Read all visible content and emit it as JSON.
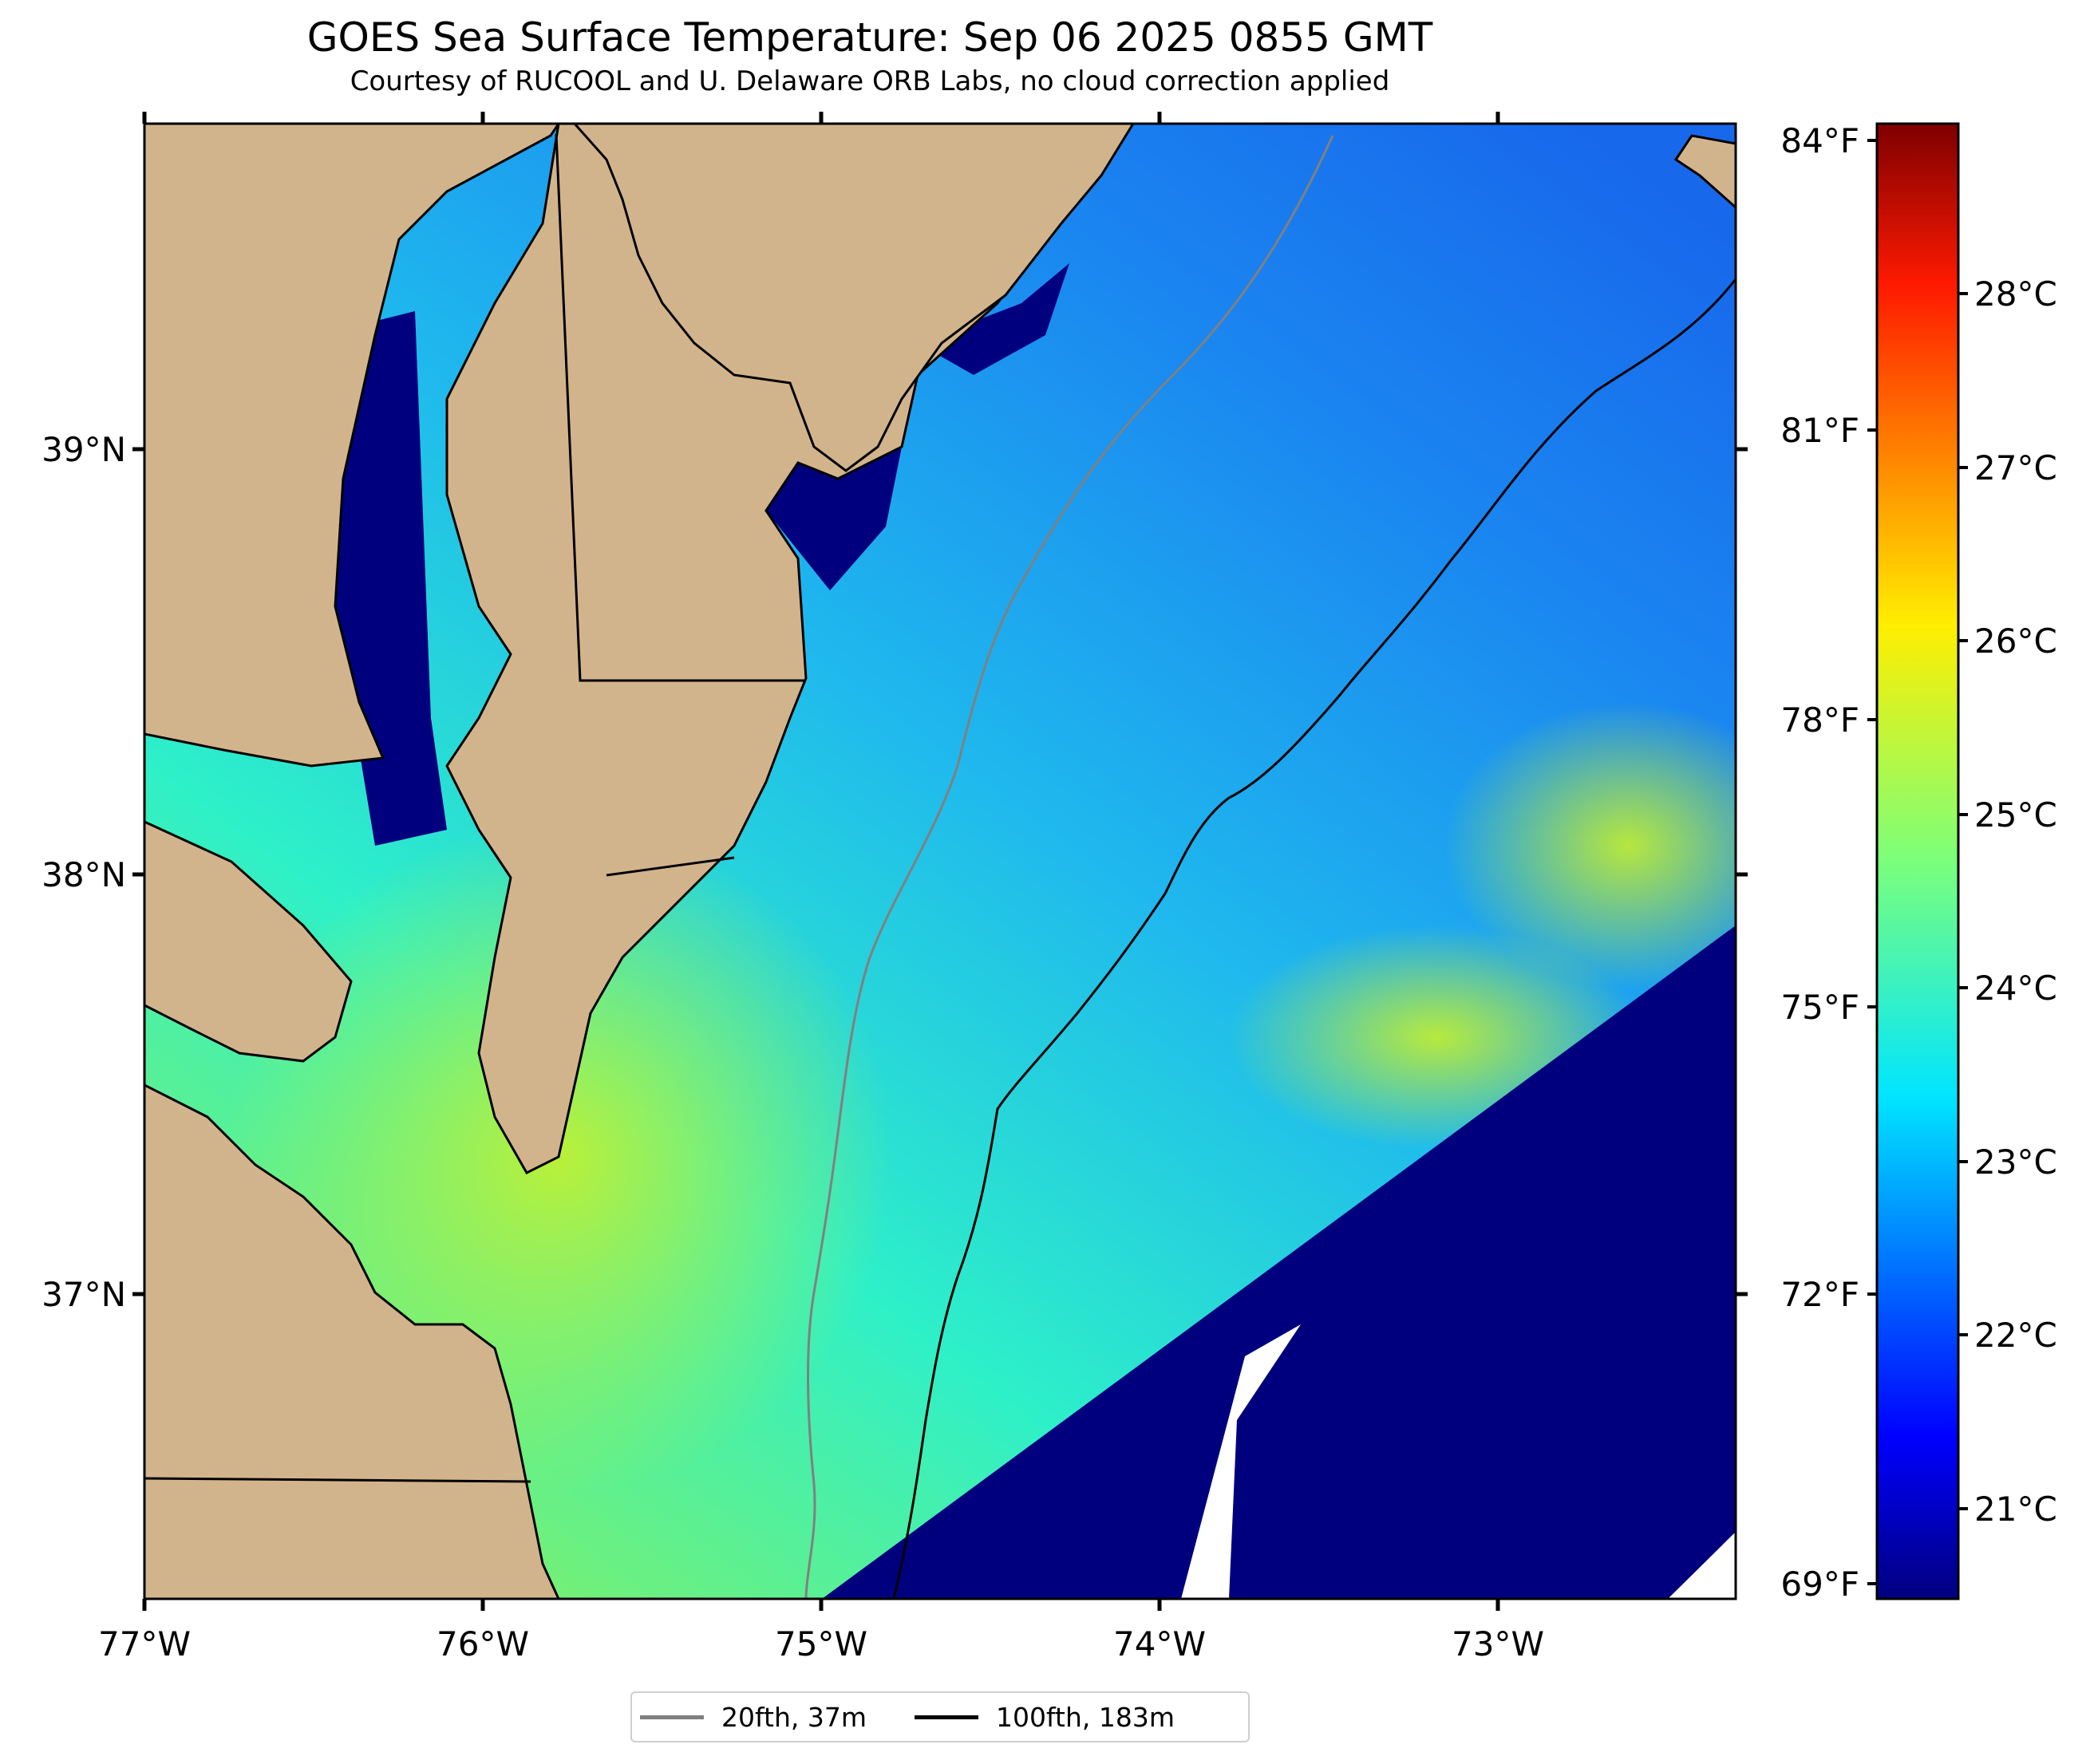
{
  "title": "GOES Sea Surface Temperature: Sep 06 2025 0855 GMT",
  "subtitle": "Courtesy of RUCOOL and U. Delaware ORB Labs, no cloud correction applied",
  "map": {
    "lon_ticks": [
      "77°W",
      "76°W",
      "75°W",
      "74°W",
      "73°W"
    ],
    "lat_ticks": [
      "39°N",
      "38°N",
      "37°N"
    ],
    "land_color": "#d2b48c",
    "nodata_color": "#ffffff",
    "cloud_color": "#00007f"
  },
  "colorbar": {
    "f_ticks": [
      "84°F",
      "81°F",
      "78°F",
      "75°F",
      "72°F",
      "69°F"
    ],
    "c_ticks": [
      "28°C",
      "27°C",
      "26°C",
      "25°C",
      "24°C",
      "23°C",
      "22°C",
      "21°C"
    ],
    "colormap": "jet"
  },
  "legend": [
    {
      "label": "20fth, 37m",
      "color": "#808080"
    },
    {
      "label": "100fth, 183m",
      "color": "#000000"
    }
  ]
}
